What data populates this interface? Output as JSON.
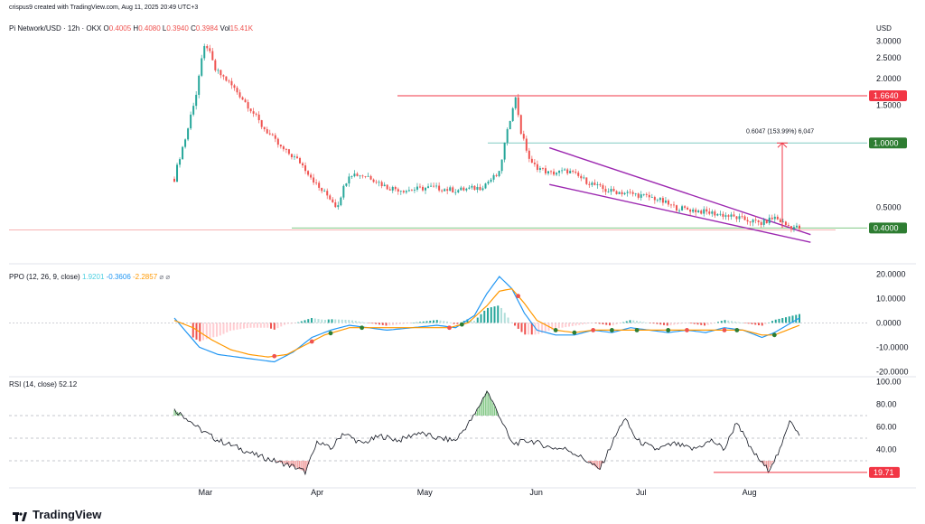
{
  "header": {
    "credit": "crispus9 created with TradingView.com, Aug 11, 2025 20:49 UTC+3",
    "symbol": "Pi Network/USD · 12h · OKX",
    "o_label": "O",
    "o_value": "0.4005",
    "h_label": "H",
    "h_value": "0.4080",
    "l_label": "L",
    "l_value": "0.3940",
    "c_label": "C",
    "c_value": "0.3984",
    "vol_label": "Vol",
    "vol_value": "15.41K",
    "currency": "USD"
  },
  "colors": {
    "up": "#26a69a",
    "down": "#ef5350",
    "resistance": "#f23645",
    "support": "#4caf50",
    "wedge": "#9c27b0",
    "ppo_line": "#2196f3",
    "ppo_signal": "#ff9800",
    "rsi_line": "#131722",
    "label_red": "#f23645",
    "label_green": "#2e7d32"
  },
  "chart_data": {
    "type": "candlestick",
    "x_axis": {
      "ticks": [
        "Mar",
        "Apr",
        "May",
        "Jun",
        "Jul",
        "Aug"
      ]
    },
    "price": {
      "y_ticks": [
        "3.0000",
        "2.5000",
        "2.0000",
        "1.5000",
        "0.5000"
      ],
      "ylim": [
        0.3,
        3.1
      ],
      "levels": [
        {
          "value": 1.664,
          "label": "1.6640",
          "style": "resistance"
        },
        {
          "value": 1.0,
          "label": "1.0000",
          "style": "target"
        },
        {
          "value": 0.4,
          "label": "0.4000",
          "style": "support"
        }
      ],
      "measure": {
        "from": 0.4,
        "to": 1.0,
        "label": "0.6047 (153.99%) 6,047"
      },
      "wedge": {
        "upper": [
          [
            0.6,
            0.95
          ],
          [
            0.96,
            0.38
          ]
        ],
        "lower": [
          [
            0.6,
            0.64
          ],
          [
            0.96,
            0.35
          ]
        ]
      },
      "series_keypoints": [
        [
          0.0,
          0.68
        ],
        [
          0.02,
          1.1
        ],
        [
          0.035,
          1.7
        ],
        [
          0.05,
          2.95
        ],
        [
          0.065,
          2.2
        ],
        [
          0.085,
          1.95
        ],
        [
          0.11,
          1.6
        ],
        [
          0.14,
          1.2
        ],
        [
          0.17,
          0.95
        ],
        [
          0.2,
          0.82
        ],
        [
          0.23,
          0.62
        ],
        [
          0.25,
          0.55
        ],
        [
          0.26,
          0.5
        ],
        [
          0.28,
          0.72
        ],
        [
          0.31,
          0.7
        ],
        [
          0.34,
          0.62
        ],
        [
          0.37,
          0.6
        ],
        [
          0.41,
          0.62
        ],
        [
          0.45,
          0.6
        ],
        [
          0.49,
          0.62
        ],
        [
          0.52,
          0.72
        ],
        [
          0.535,
          1.2
        ],
        [
          0.545,
          1.66
        ],
        [
          0.555,
          1.1
        ],
        [
          0.57,
          0.8
        ],
        [
          0.6,
          0.72
        ],
        [
          0.63,
          0.74
        ],
        [
          0.66,
          0.66
        ],
        [
          0.69,
          0.6
        ],
        [
          0.73,
          0.58
        ],
        [
          0.77,
          0.55
        ],
        [
          0.8,
          0.5
        ],
        [
          0.84,
          0.48
        ],
        [
          0.88,
          0.46
        ],
        [
          0.91,
          0.44
        ],
        [
          0.94,
          0.42
        ],
        [
          0.96,
          0.45
        ],
        [
          0.98,
          0.41
        ],
        [
          1.0,
          0.4
        ]
      ]
    },
    "ppo": {
      "title": "PPO (12, 26, 9, close)",
      "values": [
        "1.9201",
        "-0.3606",
        "-2.2857"
      ],
      "y_ticks": [
        "20.0000",
        "10.0000",
        "0.0000",
        "-10.0000",
        "-20.0000"
      ],
      "ylim": [
        -21,
        22
      ],
      "line_keypoints": [
        [
          0.0,
          2
        ],
        [
          0.02,
          -4
        ],
        [
          0.04,
          -10
        ],
        [
          0.07,
          -13
        ],
        [
          0.1,
          -14
        ],
        [
          0.13,
          -15
        ],
        [
          0.16,
          -16
        ],
        [
          0.19,
          -12
        ],
        [
          0.22,
          -6
        ],
        [
          0.25,
          -3
        ],
        [
          0.28,
          -1
        ],
        [
          0.31,
          -2
        ],
        [
          0.34,
          -3
        ],
        [
          0.38,
          -2
        ],
        [
          0.42,
          -1
        ],
        [
          0.45,
          -2
        ],
        [
          0.48,
          3
        ],
        [
          0.5,
          12
        ],
        [
          0.52,
          19
        ],
        [
          0.54,
          14
        ],
        [
          0.56,
          4
        ],
        [
          0.58,
          -3
        ],
        [
          0.61,
          -5
        ],
        [
          0.64,
          -5
        ],
        [
          0.67,
          -3
        ],
        [
          0.7,
          -4
        ],
        [
          0.73,
          -2
        ],
        [
          0.76,
          -3
        ],
        [
          0.79,
          -4
        ],
        [
          0.82,
          -3
        ],
        [
          0.85,
          -4
        ],
        [
          0.88,
          -2
        ],
        [
          0.91,
          -3
        ],
        [
          0.94,
          -6
        ],
        [
          0.96,
          -4
        ],
        [
          0.98,
          -1
        ],
        [
          1.0,
          2
        ]
      ],
      "signal_keypoints": [
        [
          0.0,
          1
        ],
        [
          0.03,
          -2
        ],
        [
          0.06,
          -7
        ],
        [
          0.09,
          -11
        ],
        [
          0.12,
          -13
        ],
        [
          0.15,
          -14
        ],
        [
          0.18,
          -13
        ],
        [
          0.21,
          -9
        ],
        [
          0.24,
          -5
        ],
        [
          0.28,
          -2
        ],
        [
          0.32,
          -2
        ],
        [
          0.36,
          -2
        ],
        [
          0.4,
          -2
        ],
        [
          0.44,
          -2
        ],
        [
          0.47,
          0
        ],
        [
          0.5,
          7
        ],
        [
          0.52,
          13
        ],
        [
          0.54,
          14
        ],
        [
          0.56,
          8
        ],
        [
          0.58,
          1
        ],
        [
          0.61,
          -3
        ],
        [
          0.64,
          -4
        ],
        [
          0.67,
          -3
        ],
        [
          0.7,
          -3
        ],
        [
          0.73,
          -3
        ],
        [
          0.76,
          -3
        ],
        [
          0.79,
          -3
        ],
        [
          0.82,
          -3
        ],
        [
          0.85,
          -3
        ],
        [
          0.88,
          -3
        ],
        [
          0.91,
          -3
        ],
        [
          0.94,
          -5
        ],
        [
          0.96,
          -5
        ],
        [
          0.98,
          -3
        ],
        [
          1.0,
          -1
        ]
      ]
    },
    "rsi": {
      "title": "RSI (14, close)",
      "value": "52.12",
      "y_ticks": [
        "100.00",
        "80.00",
        "60.00",
        "40.00"
      ],
      "ylim": [
        10,
        102
      ],
      "bands": [
        70,
        50,
        30
      ],
      "level": {
        "value": 19.71,
        "label": "19.71"
      },
      "line_keypoints": [
        [
          0.0,
          75
        ],
        [
          0.02,
          68
        ],
        [
          0.04,
          58
        ],
        [
          0.07,
          48
        ],
        [
          0.1,
          42
        ],
        [
          0.13,
          35
        ],
        [
          0.16,
          30
        ],
        [
          0.19,
          25
        ],
        [
          0.21,
          20
        ],
        [
          0.23,
          48
        ],
        [
          0.25,
          40
        ],
        [
          0.27,
          55
        ],
        [
          0.3,
          45
        ],
        [
          0.33,
          52
        ],
        [
          0.36,
          48
        ],
        [
          0.39,
          55
        ],
        [
          0.42,
          50
        ],
        [
          0.45,
          48
        ],
        [
          0.48,
          70
        ],
        [
          0.5,
          92
        ],
        [
          0.52,
          70
        ],
        [
          0.54,
          45
        ],
        [
          0.57,
          48
        ],
        [
          0.6,
          42
        ],
        [
          0.63,
          40
        ],
        [
          0.66,
          30
        ],
        [
          0.68,
          22
        ],
        [
          0.7,
          45
        ],
        [
          0.72,
          68
        ],
        [
          0.74,
          48
        ],
        [
          0.77,
          40
        ],
        [
          0.8,
          45
        ],
        [
          0.83,
          40
        ],
        [
          0.86,
          48
        ],
        [
          0.88,
          40
        ],
        [
          0.9,
          65
        ],
        [
          0.92,
          42
        ],
        [
          0.94,
          28
        ],
        [
          0.95,
          22
        ],
        [
          0.97,
          40
        ],
        [
          0.985,
          68
        ],
        [
          1.0,
          52
        ]
      ]
    }
  },
  "footer": {
    "brand": "TradingView"
  }
}
